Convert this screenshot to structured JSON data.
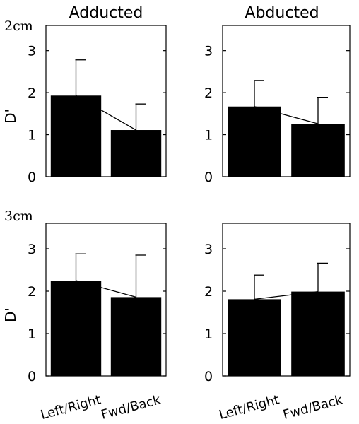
{
  "columns": [
    "Adducted",
    "Abducted"
  ],
  "rows": [
    "2cm",
    "3cm"
  ],
  "ylabel": "D'",
  "categories": [
    "Left/Right",
    "Fwd/Back"
  ],
  "colors": {
    "bar": "#000000",
    "axis": "#000000",
    "background": "#ffffff"
  },
  "chart_data": [
    {
      "type": "bar",
      "panel": "2cm / Adducted",
      "categories": [
        "Left/Right",
        "Fwd/Back"
      ],
      "values": [
        1.93,
        1.11
      ],
      "errors": [
        0.85,
        0.62
      ],
      "ylabel": "D'",
      "ylim": [
        0,
        3.6
      ],
      "yticks": [
        0,
        1,
        2,
        3
      ]
    },
    {
      "type": "bar",
      "panel": "2cm / Abducted",
      "categories": [
        "Left/Right",
        "Fwd/Back"
      ],
      "values": [
        1.67,
        1.26
      ],
      "errors": [
        0.62,
        0.63
      ],
      "ylabel": "",
      "ylim": [
        0,
        3.6
      ],
      "yticks": [
        0,
        1,
        2,
        3
      ]
    },
    {
      "type": "bar",
      "panel": "3cm / Adducted",
      "categories": [
        "Left/Right",
        "Fwd/Back"
      ],
      "values": [
        2.25,
        1.86
      ],
      "errors": [
        0.63,
        0.99
      ],
      "ylabel": "D'",
      "ylim": [
        0,
        3.6
      ],
      "yticks": [
        0,
        1,
        2,
        3
      ]
    },
    {
      "type": "bar",
      "panel": "3cm / Abducted",
      "categories": [
        "Left/Right",
        "Fwd/Back"
      ],
      "values": [
        1.81,
        1.99
      ],
      "errors": [
        0.57,
        0.67
      ],
      "ylabel": "",
      "ylim": [
        0,
        3.6
      ],
      "yticks": [
        0,
        1,
        2,
        3
      ]
    }
  ]
}
